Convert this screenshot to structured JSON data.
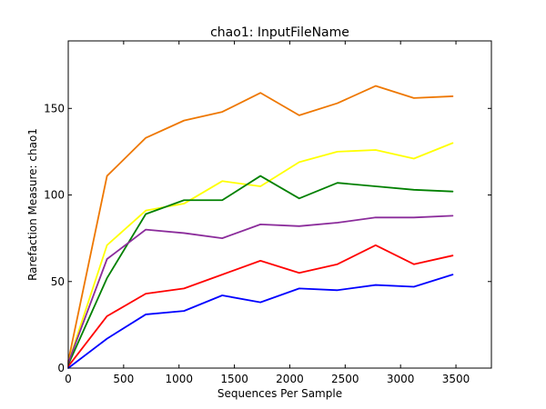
{
  "chart_data": {
    "type": "line",
    "title": "chao1: InputFileName",
    "xlabel": "Sequences Per Sample",
    "ylabel": "Rarefaction Measure: chao1",
    "xlim": [
      0,
      3820
    ],
    "ylim": [
      0,
      189
    ],
    "xticks": [
      0,
      500,
      1000,
      1500,
      2000,
      2500,
      3000,
      3500
    ],
    "yticks": [
      0,
      50,
      100,
      150
    ],
    "xtick_labels": [
      "0",
      "500",
      "1000",
      "1500",
      "2000",
      "2500",
      "3000",
      "3500"
    ],
    "ytick_labels": [
      "0",
      "50",
      "100",
      "150"
    ],
    "grid": false,
    "x": [
      0,
      350,
      700,
      1045,
      1390,
      1735,
      2085,
      2430,
      2775,
      3120,
      3470
    ],
    "series": [
      {
        "color": "#ee7700",
        "values": [
          4,
          111,
          133,
          143,
          148,
          159,
          146,
          153,
          163,
          156,
          157
        ]
      },
      {
        "color": "#ffff00",
        "values": [
          3,
          71,
          91,
          95,
          108,
          105,
          119,
          125,
          126,
          121,
          130
        ]
      },
      {
        "color": "#008000",
        "values": [
          2,
          52,
          89,
          97,
          97,
          111,
          98,
          107,
          105,
          103,
          102
        ]
      },
      {
        "color": "#8b2c9b",
        "values": [
          3,
          63,
          80,
          78,
          75,
          83,
          82,
          84,
          87,
          87,
          88
        ]
      },
      {
        "color": "#ff0000",
        "values": [
          1,
          30,
          43,
          46,
          54,
          62,
          55,
          60,
          71,
          60,
          65
        ]
      },
      {
        "color": "#0000ff",
        "values": [
          0,
          17,
          31,
          33,
          42,
          38,
          46,
          45,
          48,
          47,
          54
        ]
      }
    ]
  }
}
